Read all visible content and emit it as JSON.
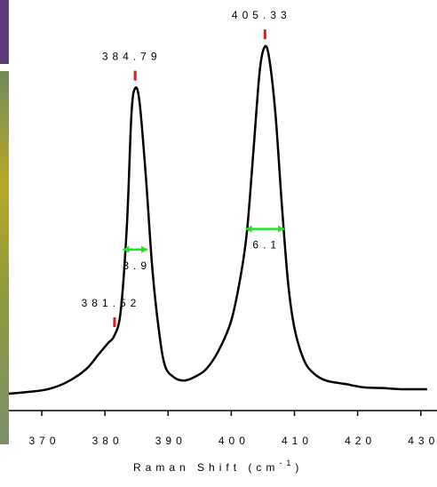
{
  "chart_data": {
    "type": "line",
    "xlabel": "Raman Shift (cm",
    "xlabel_sup": "-1",
    "xlabel_end": ")",
    "x": [
      364.8,
      368,
      371,
      374,
      377,
      379,
      380.5,
      381.5,
      382.5,
      383.5,
      384.2,
      384.8,
      385.5,
      386.5,
      387.5,
      388.5,
      389.5,
      391,
      392.5,
      394,
      396,
      398,
      400,
      401.5,
      402.5,
      403.5,
      404.5,
      405.3,
      406,
      407,
      408,
      409,
      410,
      411.5,
      413,
      415,
      418,
      421,
      424,
      427,
      431
    ],
    "series": [
      {
        "color": "#000000",
        "values": [
          0.045,
          0.05,
          0.057,
          0.076,
          0.11,
          0.15,
          0.18,
          0.2,
          0.265,
          0.5,
          0.79,
          0.86,
          0.82,
          0.62,
          0.38,
          0.22,
          0.12,
          0.088,
          0.08,
          0.088,
          0.11,
          0.16,
          0.24,
          0.36,
          0.48,
          0.69,
          0.905,
          0.97,
          0.94,
          0.79,
          0.55,
          0.34,
          0.22,
          0.135,
          0.1,
          0.08,
          0.071,
          0.062,
          0.06,
          0.057,
          0.057
        ]
      }
    ],
    "peaks": [
      {
        "x": 381.52
      },
      {
        "x": 384.79,
        "fwhm": 3.9
      },
      {
        "x": 405.33,
        "fwhm": 6.1
      }
    ],
    "peak_color": "#e8141c",
    "fwhm_color": "#22e622",
    "xlim": [
      364.8,
      431.3
    ],
    "ylim": [
      0,
      1
    ],
    "xticks": [
      370,
      380,
      390,
      400,
      410,
      420,
      430
    ]
  }
}
